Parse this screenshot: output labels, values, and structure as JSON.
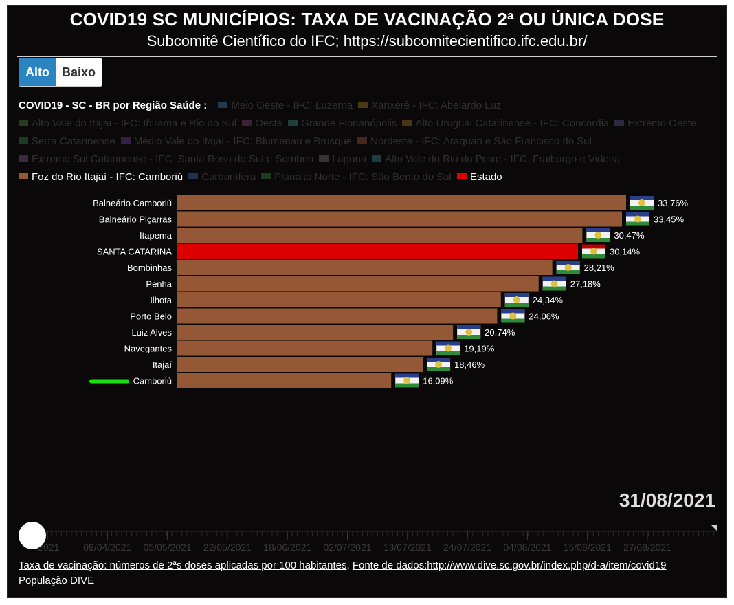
{
  "header": {
    "title": "COVID19 SC MUNICÍPIOS: TAXA DE VACINAÇÃO 2ª OU ÚNICA DOSE",
    "subtitle": "Subcomitê Científico do IFC; https://subcomitecientifico.ifc.edu.br/"
  },
  "toggle": {
    "alto": "Alto",
    "baixo": "Baixo",
    "selected": "Alto"
  },
  "legend": {
    "title": "COVID19 - SC - BR por Região Saúde :",
    "items": [
      {
        "label": "Meio Oeste - IFC: Luzerna",
        "color": "#1f3a4d",
        "active": false
      },
      {
        "label": "Xanxerê - IFC: Abelardo Luz",
        "color": "#4a3a12",
        "active": false
      },
      {
        "label": "Alto Vale do Itajaí  - IFC: Ibirama e Rio do Sul",
        "color": "#2a3a1c",
        "active": false
      },
      {
        "label": "Oeste",
        "color": "#3e2035",
        "active": false
      },
      {
        "label": "Grande Florianópolis",
        "color": "#1f3f3a",
        "active": false
      },
      {
        "label": "Alto Uruguai Catarinense - IFC: Concórdia",
        "color": "#4a3412",
        "active": false
      },
      {
        "label": "Extremo Oeste",
        "color": "#2a2a40",
        "active": false
      },
      {
        "label": "Serra Catarinense",
        "color": "#1e3a22",
        "active": false
      },
      {
        "label": "Médio Vale do Itajaí - IFC: Blumenau e Brusque",
        "color": "#332044",
        "active": false
      },
      {
        "label": "Nordeste - IFC: Araquari e São Francisco do Sul",
        "color": "#4a2620",
        "active": false
      },
      {
        "label": "Extremo Sul Catarinense - IFC: Santa Rosa do Sul e Sombrio",
        "color": "#3a2a40",
        "active": false
      },
      {
        "label": "Laguna",
        "color": "#333333",
        "active": false
      },
      {
        "label": "Alto Vale do Rio do Peixe - IFC: Fraiburgo e Videira",
        "color": "#1e3e3e",
        "active": false
      },
      {
        "label": "Foz do Rio Itajaí - IFC: Camboriú",
        "color": "#955837",
        "active": true
      },
      {
        "label": "Carbonífera",
        "color": "#22304a",
        "active": false
      },
      {
        "label": "Planalto Norte - IFC: São Bento do Sul",
        "color": "#1e3a1e",
        "active": false
      },
      {
        "label": "Estado",
        "color": "#dc0000",
        "active": true
      }
    ]
  },
  "chart_data": {
    "type": "bar",
    "orientation": "horizontal",
    "categories": [
      "Balneário Camboriú",
      "Balneário Piçarras",
      "Itapema",
      "SANTA CATARINA",
      "Bombinhas",
      "Penha",
      "Ilhota",
      "Porto Belo",
      "Luiz Alves",
      "Navegantes",
      "Itajaí",
      "Camboriú"
    ],
    "values": [
      33.76,
      33.45,
      30.47,
      30.14,
      28.21,
      27.18,
      24.34,
      24.06,
      20.74,
      19.19,
      18.46,
      16.09
    ],
    "value_labels": [
      "33,76%",
      "33,45%",
      "30,47%",
      "30,14%",
      "28,21%",
      "27,18%",
      "24,34%",
      "24,06%",
      "20,74%",
      "19,19%",
      "18,46%",
      "16,09%"
    ],
    "series_colors": [
      "#955837",
      "#955837",
      "#955837",
      "#dc0000",
      "#955837",
      "#955837",
      "#955837",
      "#955837",
      "#955837",
      "#955837",
      "#955837",
      "#955837"
    ],
    "highlight": "Camboriú",
    "highlight_color": "#16e00d",
    "xlim": [
      0,
      33.76
    ]
  },
  "date": "31/08/2021",
  "timeline": {
    "ticks": [
      "/2021",
      "09/04/2021",
      "05/05/2021",
      "22/05/2021",
      "18/06/2021",
      "02/07/2021",
      "13/07/2021",
      "24/07/2021",
      "04/08/2021",
      "15/08/2021",
      "27/08/2021"
    ]
  },
  "footer": {
    "line1_a": "Taxa de vacinação: números de 2ªs doses aplicadas por 100 habitantes",
    "line1_sep": ", ",
    "line1_b": "Fonte de dados:http://www.dive.sc.gov.br/index.php/d-a/item/covid19",
    "line2": "População DIVE"
  }
}
